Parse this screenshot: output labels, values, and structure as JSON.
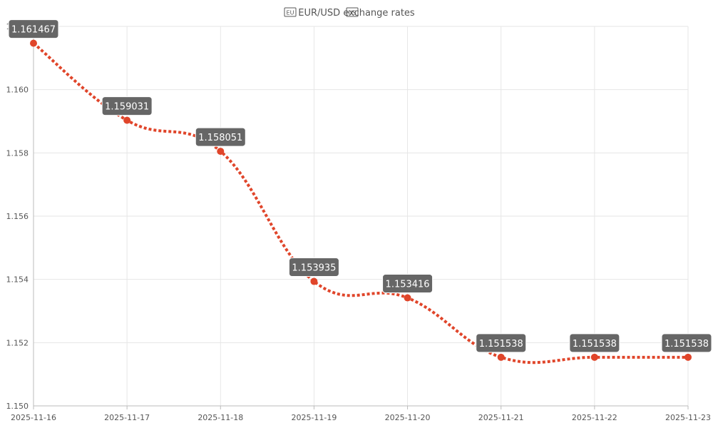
{
  "chart_data": {
    "type": "line",
    "title": "EUR/USD exchange rates",
    "title_left_icon": "eu-flag-icon",
    "title_right_icon": "us-flag-icon",
    "xlabel": "",
    "ylabel": "",
    "x": [
      "2025-11-16",
      "2025-11-17",
      "2025-11-18",
      "2025-11-19",
      "2025-11-20",
      "2025-11-21",
      "2025-11-22",
      "2025-11-23"
    ],
    "series": [
      {
        "values": [
          1.161467,
          1.159031,
          1.158051,
          1.153935,
          1.153416,
          1.151538,
          1.151538,
          1.151538
        ],
        "data_labels": [
          "1.161467",
          "1.159031",
          "1.158051",
          "1.153935",
          "1.153416",
          "1.151538",
          "1.151538",
          "1.151538"
        ],
        "color": "#e0452a",
        "line_style": "dotted",
        "smooth": true
      }
    ],
    "y_ticks": [
      "1.150",
      "1.152",
      "1.154",
      "1.156",
      "1.158",
      "1.160",
      "1.162"
    ],
    "y_tick_values": [
      1.15,
      1.152,
      1.154,
      1.156,
      1.158,
      1.16,
      1.162
    ],
    "ylim": [
      1.15,
      1.162
    ],
    "grid": true,
    "legend": "none",
    "colors": {
      "line": "#e0452a",
      "point": "#e0452a",
      "label_bg": "#666666",
      "label_border": "#ffffff",
      "grid": "#e6e6e6",
      "axis": "#bbbbbb",
      "text": "#555555"
    }
  }
}
